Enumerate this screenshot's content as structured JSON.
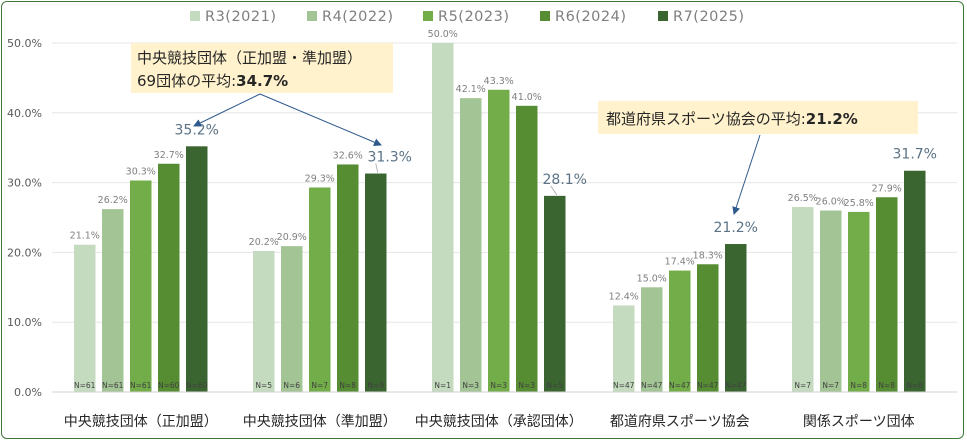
{
  "chart_data": {
    "type": "bar",
    "ylim": [
      0,
      50
    ],
    "ytick_labels": [
      "0.0%",
      "10.0%",
      "20.0%",
      "30.0%",
      "40.0%",
      "50.0%"
    ],
    "yticks": [
      0,
      10,
      20,
      30,
      40,
      50
    ],
    "grid": true,
    "legend_position": "top",
    "categories": [
      "中央競技団体（正加盟）",
      "中央競技団体（準加盟）",
      "中央競技団体（承認団体）",
      "都道府県スポーツ協会",
      "関係スポーツ団体"
    ],
    "series": [
      {
        "name": "R3(2021)",
        "color": "#c5dbbf",
        "values": [
          21.1,
          20.2,
          50.0,
          12.4,
          26.5
        ],
        "labels": [
          "21.1%",
          "20.2%",
          "50.0%",
          "12.4%",
          "26.5%"
        ],
        "n": [
          "N=61",
          "N=5",
          "N=1",
          "N=47",
          "N=7"
        ]
      },
      {
        "name": "R4(2022)",
        "color": "#a3c494",
        "values": [
          26.2,
          20.9,
          42.1,
          15.0,
          26.0
        ],
        "labels": [
          "26.2%",
          "20.9%",
          "42.1%",
          "15.0%",
          "26.0%"
        ],
        "n": [
          "N=61",
          "N=6",
          "N=3",
          "N=47",
          "N=7"
        ]
      },
      {
        "name": "R5(2023)",
        "color": "#73ad4a",
        "values": [
          30.3,
          29.3,
          43.3,
          17.4,
          25.8
        ],
        "labels": [
          "30.3%",
          "29.3%",
          "43.3%",
          "17.4%",
          "25.8%"
        ],
        "n": [
          "N=61",
          "N=7",
          "N=3",
          "N=47",
          "N=8"
        ]
      },
      {
        "name": "R6(2024)",
        "color": "#568d33",
        "values": [
          32.7,
          32.6,
          41.0,
          18.3,
          27.9
        ],
        "labels": [
          "32.7%",
          "32.6%",
          "41.0%",
          "18.3%",
          "27.9%"
        ],
        "n": [
          "N=60",
          "N=8",
          "N=3",
          "N=47",
          "N=8"
        ]
      },
      {
        "name": "R7(2025)",
        "color": "#3a6530",
        "values": [
          35.2,
          31.3,
          28.1,
          21.2,
          31.7
        ],
        "labels": [
          "35.2%",
          "31.3%",
          "28.1%",
          "21.2%",
          "31.7%"
        ],
        "n": [
          "N=60",
          "N=9",
          "N=5",
          "N=47",
          "N=8"
        ]
      }
    ],
    "annotations": [
      {
        "line1": "中央競技団体（正加盟・準加盟）",
        "line2_prefix": "69団体の平均:",
        "line2_value": "34.7%"
      },
      {
        "line1_prefix": "都道府県スポーツ協会の平均:",
        "line1_value": "21.2%"
      }
    ]
  }
}
